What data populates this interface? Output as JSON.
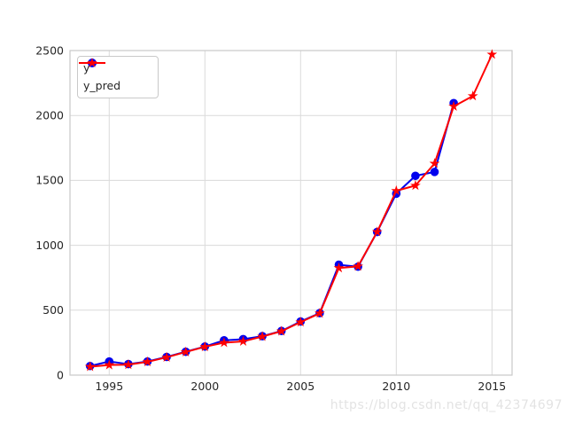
{
  "watermark": "https://blog.csdn.net/qq_42374697",
  "colors": {
    "series_y": "#0000ee",
    "series_y_pred": "#ff0000",
    "grid": "#dadada",
    "spine": "#c9c9c9",
    "tick_label": "#262626",
    "background": "#ffffff",
    "watermark": "#e3e3e3"
  },
  "chart_data": {
    "type": "line",
    "title": "",
    "xlabel": "",
    "ylabel": "",
    "grid": true,
    "legend_position": "upper-left",
    "xlim": [
      1992.95,
      2016.05
    ],
    "ylim": [
      0,
      2500
    ],
    "x_ticks": [
      1995,
      2000,
      2005,
      2010,
      2015
    ],
    "y_ticks": [
      0,
      500,
      1000,
      1500,
      2000,
      2500
    ],
    "series": [
      {
        "name": "y",
        "marker": "circle",
        "color": "#0000ee",
        "x": [
          1994,
          1995,
          1996,
          1997,
          1998,
          1999,
          2000,
          2001,
          2002,
          2003,
          2004,
          2005,
          2006,
          2007,
          2008,
          2009,
          2010,
          2011,
          2012,
          2013
        ],
        "values": [
          70,
          105,
          85,
          105,
          140,
          180,
          220,
          268,
          277,
          300,
          340,
          413,
          478,
          850,
          835,
          1103,
          1398,
          1535,
          1565,
          2095
        ]
      },
      {
        "name": "y_pred",
        "marker": "star",
        "color": "#ff0000",
        "x": [
          1994,
          1995,
          1996,
          1997,
          1998,
          1999,
          2000,
          2001,
          2002,
          2003,
          2004,
          2005,
          2006,
          2007,
          2008,
          2009,
          2010,
          2011,
          2012,
          2013,
          2014,
          2015
        ],
        "values": [
          65,
          78,
          80,
          102,
          137,
          178,
          218,
          250,
          260,
          297,
          338,
          408,
          476,
          825,
          838,
          1103,
          1420,
          1460,
          1630,
          2070,
          2150,
          2470
        ]
      }
    ]
  }
}
